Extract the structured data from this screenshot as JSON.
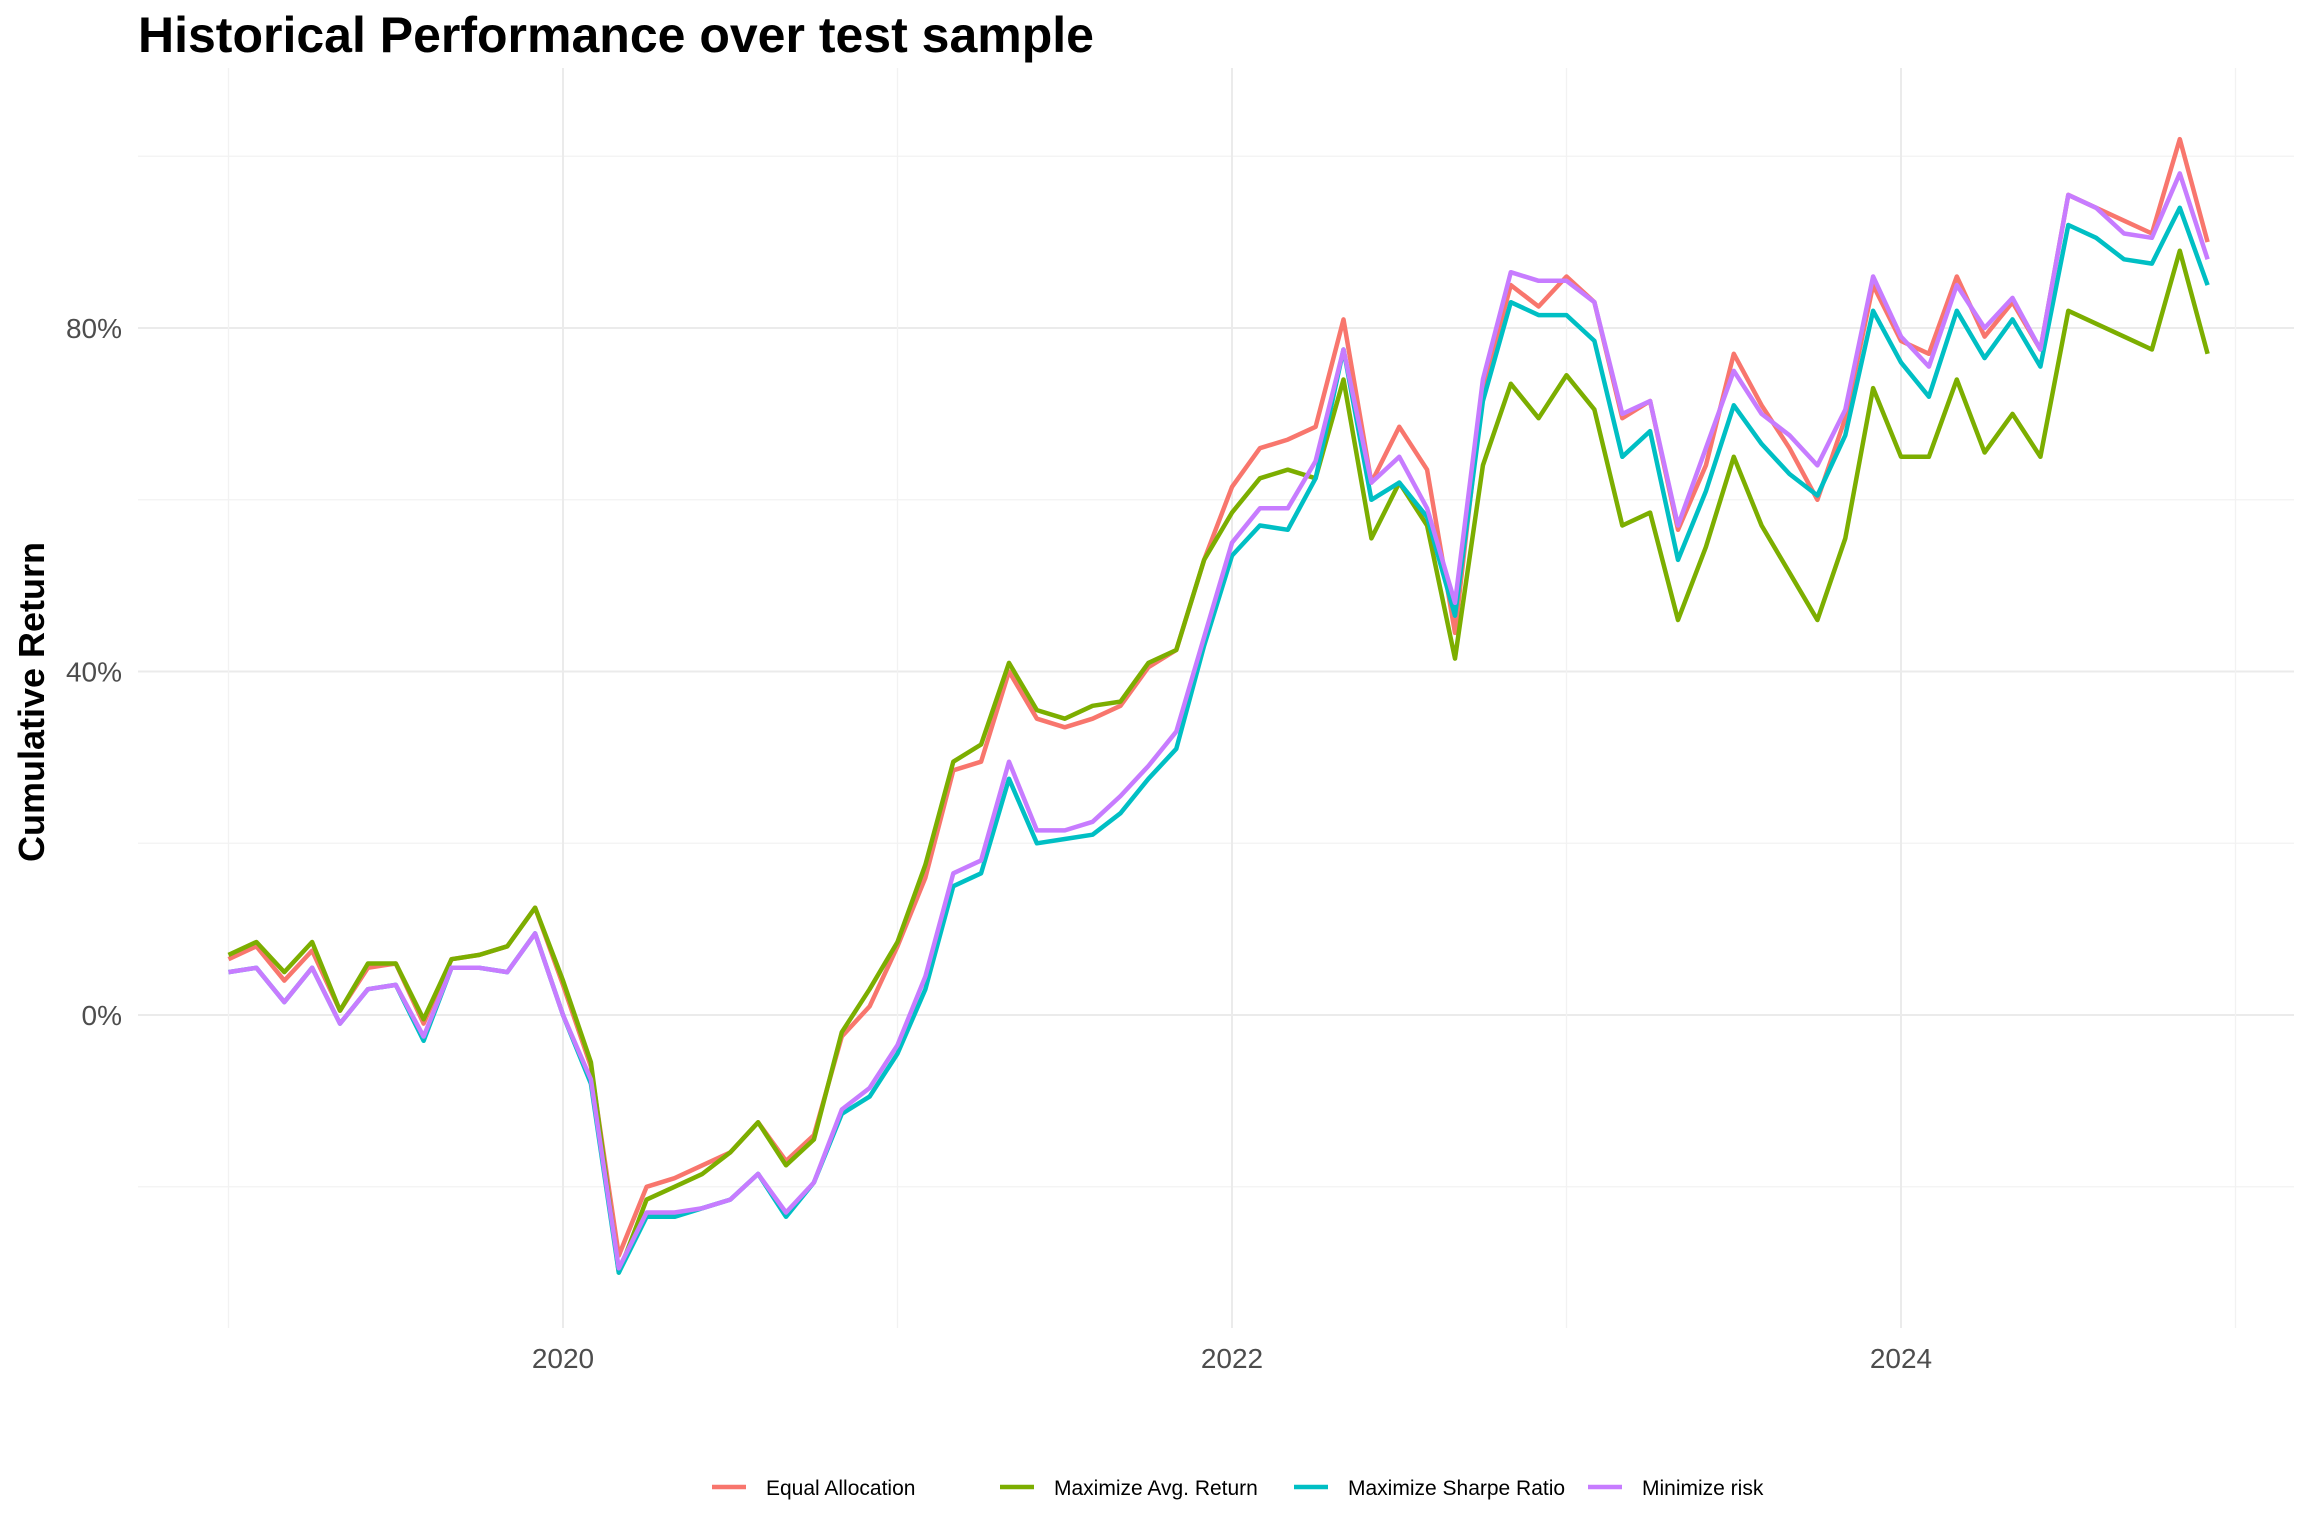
{
  "chart_data": {
    "type": "line",
    "title": "Historical Performance over test sample",
    "xlabel": "",
    "ylabel": "Cumulative Return",
    "x_ticks": [
      "2020",
      "2022",
      "2024"
    ],
    "y_ticks": [
      "0%",
      "40%",
      "80%"
    ],
    "grid": true,
    "legend_position": "bottom",
    "x": [
      "2019-01",
      "2019-02",
      "2019-03",
      "2019-04",
      "2019-05",
      "2019-06",
      "2019-07",
      "2019-08",
      "2019-09",
      "2019-10",
      "2019-11",
      "2019-12",
      "2020-01",
      "2020-02",
      "2020-03",
      "2020-04",
      "2020-05",
      "2020-06",
      "2020-07",
      "2020-08",
      "2020-09",
      "2020-10",
      "2020-11",
      "2020-12",
      "2021-01",
      "2021-02",
      "2021-03",
      "2021-04",
      "2021-05",
      "2021-06",
      "2021-07",
      "2021-08",
      "2021-09",
      "2021-10",
      "2021-11",
      "2021-12",
      "2022-01",
      "2022-02",
      "2022-03",
      "2022-04",
      "2022-05",
      "2022-06",
      "2022-07",
      "2022-08",
      "2022-09",
      "2022-10",
      "2022-11",
      "2022-12",
      "2023-01",
      "2023-02",
      "2023-03",
      "2023-04",
      "2023-05",
      "2023-06",
      "2023-07",
      "2023-08",
      "2023-09",
      "2023-10",
      "2023-11",
      "2023-12",
      "2024-01",
      "2024-02",
      "2024-03",
      "2024-04",
      "2024-05",
      "2024-06",
      "2024-07",
      "2024-08",
      "2024-09",
      "2024-10",
      "2024-11",
      "2024-12"
    ],
    "series": [
      {
        "name": "Equal Allocation",
        "color": "#F8766D",
        "values": [
          6.5,
          8,
          4,
          7.5,
          0.5,
          5.5,
          6,
          -1,
          6.5,
          7,
          8,
          12.5,
          3.5,
          -6,
          -28,
          -20,
          -19,
          -17.5,
          -16,
          -12.5,
          -17,
          -14,
          -2.5,
          1,
          8,
          16,
          28.5,
          29.5,
          40,
          34.5,
          33.5,
          34.5,
          36,
          40.5,
          42.5,
          53,
          61.5,
          66,
          67,
          68.5,
          81,
          62,
          68.5,
          63.5,
          44.5,
          73,
          85,
          82.5,
          86,
          83,
          69.5,
          71.5,
          56.5,
          64,
          77,
          71,
          66,
          60,
          69.5,
          85,
          78.5,
          77,
          86,
          79,
          83,
          77.5,
          95.5,
          94,
          92.5,
          91,
          102,
          90
        ]
      },
      {
        "name": "Maximize Avg. Return",
        "color": "#7CAE00",
        "values": [
          7,
          8.5,
          5,
          8.5,
          0.5,
          6,
          6,
          -0.5,
          6.5,
          7,
          8,
          12.5,
          4,
          -5.5,
          -30,
          -21.5,
          -20,
          -18.5,
          -16,
          -12.5,
          -17.5,
          -14.5,
          -2,
          3,
          8.5,
          17.5,
          29.5,
          31.5,
          41,
          35.5,
          34.5,
          36,
          36.5,
          41,
          42.5,
          53,
          58.5,
          62.5,
          63.5,
          62.5,
          74,
          55.5,
          62,
          57,
          41.5,
          64,
          73.5,
          69.5,
          74.5,
          70.5,
          57,
          58.5,
          46,
          54.5,
          65,
          57,
          51.5,
          46,
          55.5,
          73,
          65,
          65,
          74,
          65.5,
          70,
          65,
          82,
          80.5,
          79,
          77.5,
          89,
          77
        ]
      },
      {
        "name": "Maximize Sharpe Ratio",
        "color": "#00BFC4",
        "values": [
          5,
          5.5,
          1.5,
          5.5,
          -1,
          3,
          3.5,
          -3,
          5.5,
          5.5,
          5,
          9.5,
          0,
          -8,
          -30,
          -23.5,
          -23.5,
          -22.5,
          -21.5,
          -18.5,
          -23.5,
          -19.5,
          -11.5,
          -9.5,
          -4.5,
          3,
          15,
          16.5,
          27.5,
          20,
          20.5,
          21,
          23.5,
          27.5,
          31,
          43,
          53.5,
          57,
          56.5,
          62.5,
          77.5,
          60,
          62,
          58,
          46.5,
          71.5,
          83,
          81.5,
          81.5,
          78.5,
          65,
          68,
          53,
          61,
          71,
          66.5,
          63,
          60.5,
          67.5,
          82,
          76,
          72,
          82,
          76.5,
          81,
          75.5,
          92,
          90.5,
          88,
          87.5,
          94,
          85
        ]
      },
      {
        "name": "Minimize risk",
        "color": "#C77CFF",
        "values": [
          5,
          5.5,
          1.5,
          5.5,
          -1,
          3,
          3.5,
          -2.5,
          5.5,
          5.5,
          5,
          9.5,
          0,
          -7.5,
          -29.5,
          -23,
          -23,
          -22.5,
          -21.5,
          -18.5,
          -23,
          -19.5,
          -11,
          -8.5,
          -3.5,
          4.5,
          16.5,
          18,
          29.5,
          21.5,
          21.5,
          22.5,
          25.5,
          29,
          33,
          44,
          55,
          59,
          59,
          64.5,
          77.5,
          62,
          65,
          59,
          48,
          74,
          86.5,
          85.5,
          85.5,
          83,
          70,
          71.5,
          57,
          66,
          75,
          70,
          67.5,
          64,
          70.5,
          86,
          79,
          75.5,
          85,
          80,
          83.5,
          77.5,
          95.5,
          94,
          91,
          90.5,
          98,
          88
        ]
      }
    ]
  }
}
